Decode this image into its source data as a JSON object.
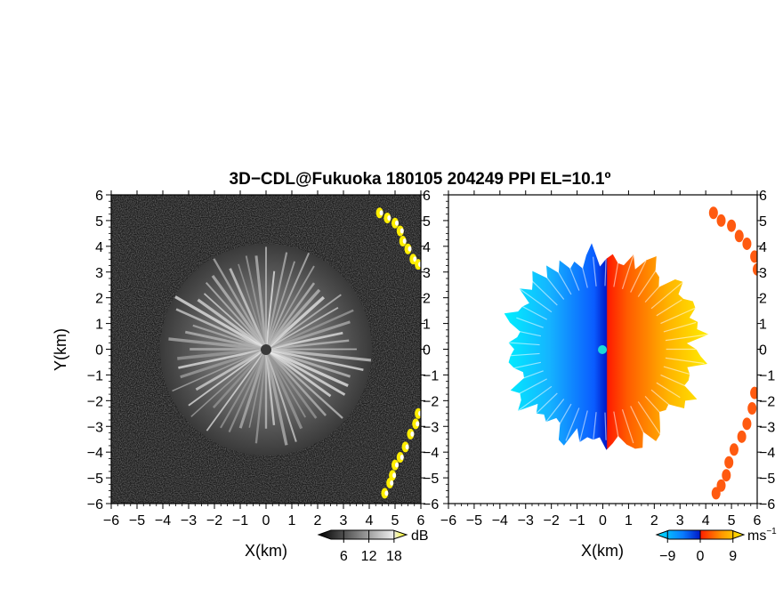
{
  "title": "3D−CDL@Fukuoka 180105 204249 PPI EL=10.1º",
  "chart_data": [
    {
      "type": "heatmap",
      "panel": "reflectivity",
      "xlabel": "X(km)",
      "ylabel": "Y(km)",
      "xlim": [
        -6,
        6
      ],
      "ylim": [
        -6,
        6
      ],
      "ticks": [
        "−6",
        "−5",
        "−4",
        "−3",
        "−2",
        "−1",
        "0",
        "1",
        "2",
        "3",
        "4",
        "5",
        "6"
      ],
      "colorbar": {
        "unit": "dB",
        "tick_labels": [
          "6",
          "12",
          "18"
        ],
        "range": [
          0,
          21
        ]
      },
      "colormap": [
        "#000000",
        "#ffffff",
        "#ffff00"
      ],
      "echo_radius_km": 4.1,
      "features": [
        "radial echo pattern centered on origin",
        "yellow echo along east edge near x=5 to 6"
      ]
    },
    {
      "type": "heatmap",
      "panel": "doppler_velocity",
      "xlabel": "X(km)",
      "xlim": [
        -6,
        6
      ],
      "ylim": [
        -6,
        6
      ],
      "ticks": [
        "−6",
        "−5",
        "−4",
        "−3",
        "−2",
        "−1",
        "0",
        "1",
        "2",
        "3",
        "4",
        "5",
        "6"
      ],
      "colorbar": {
        "unit": "ms",
        "unit_exp": "−1",
        "tick_labels": [
          "−9",
          "0",
          "9"
        ],
        "range": [
          -12,
          12
        ]
      },
      "colormap": [
        "#00e5ff",
        "#0033ff",
        "#ff3300",
        "#ffee00"
      ],
      "echo_radius_km": 4.1,
      "features": [
        "negative velocities west of origin",
        "positive velocities east of origin",
        "orange echo along east edge"
      ]
    }
  ]
}
